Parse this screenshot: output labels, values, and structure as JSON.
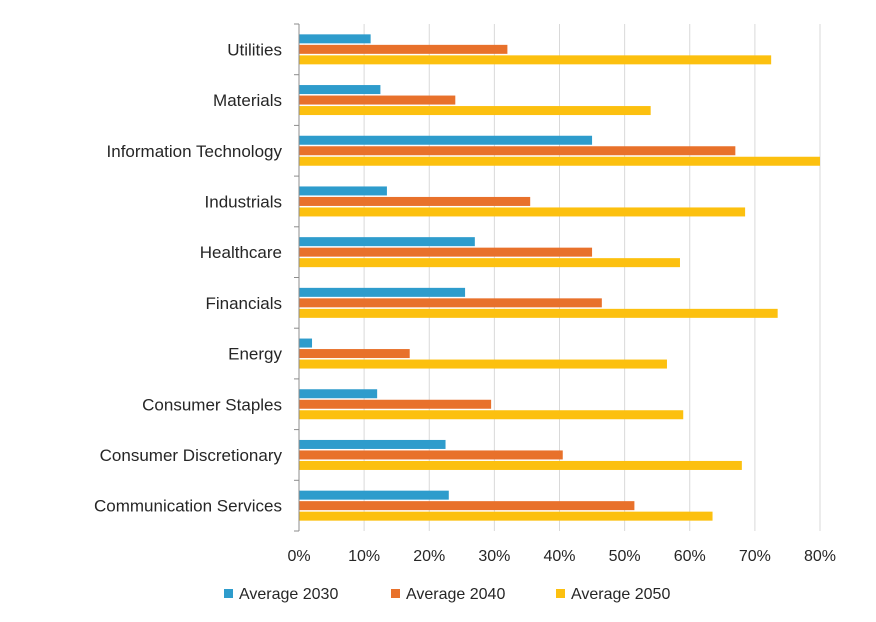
{
  "chart_data": {
    "type": "bar",
    "orientation": "horizontal",
    "categories": [
      "Utilities",
      "Materials",
      "Information Technology",
      "Industrials",
      "Healthcare",
      "Financials",
      "Energy",
      "Consumer Staples",
      "Consumer Discretionary",
      "Communication Services"
    ],
    "series": [
      {
        "name": "Average 2030",
        "color": "#2e9ccc",
        "values": [
          11,
          12.5,
          45,
          13.5,
          27,
          25.5,
          2,
          12,
          22.5,
          23
        ]
      },
      {
        "name": "Average 2040",
        "color": "#e8712b",
        "values": [
          32,
          24,
          67,
          35.5,
          45,
          46.5,
          17,
          29.5,
          40.5,
          51.5
        ]
      },
      {
        "name": "Average 2050",
        "color": "#fcc00f",
        "values": [
          72.5,
          54,
          80,
          68.5,
          58.5,
          73.5,
          56.5,
          59,
          68,
          63.5
        ]
      }
    ],
    "x_ticks": [
      "0%",
      "10%",
      "20%",
      "30%",
      "40%",
      "50%",
      "60%",
      "70%",
      "80%"
    ],
    "xlim": [
      0,
      80
    ],
    "grid": true,
    "legend_position": "bottom",
    "title": "",
    "xlabel": "",
    "ylabel": ""
  }
}
